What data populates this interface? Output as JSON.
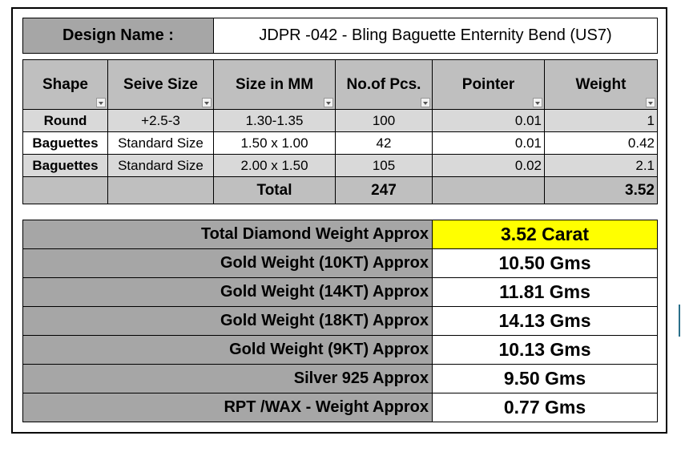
{
  "design": {
    "label": "Design Name :",
    "value": "JDPR -042 - Bling Baguette Enternity Bend (US7)"
  },
  "table": {
    "headers": [
      "Shape",
      "Seive Size",
      "Size in MM",
      "No.of Pcs.",
      "Pointer",
      "Weight"
    ],
    "rows": [
      [
        "Round",
        "+2.5-3",
        "1.30-1.35",
        "100",
        "0.01",
        "1"
      ],
      [
        "Baguettes",
        "Standard Size",
        "1.50 x 1.00",
        "42",
        "0.01",
        "0.42"
      ],
      [
        "Baguettes",
        "Standard Size",
        "2.00 x 1.50",
        "105",
        "0.02",
        "2.1"
      ]
    ],
    "total": {
      "label": "Total",
      "pieces": "247",
      "weight": "3.52"
    }
  },
  "summary": {
    "rows": [
      [
        "Total Diamond Weight Approx",
        "3.52 Carat"
      ],
      [
        "Gold Weight (10KT) Approx",
        "10.50 Gms"
      ],
      [
        "Gold Weight (14KT) Approx",
        "11.81 Gms"
      ],
      [
        "Gold Weight (18KT) Approx",
        "14.13 Gms"
      ],
      [
        "Gold Weight (9KT) Approx",
        "10.13 Gms"
      ],
      [
        "Silver 925 Approx",
        "9.50 Gms"
      ],
      [
        "RPT /WAX - Weight Approx",
        "0.77 Gms"
      ]
    ]
  }
}
